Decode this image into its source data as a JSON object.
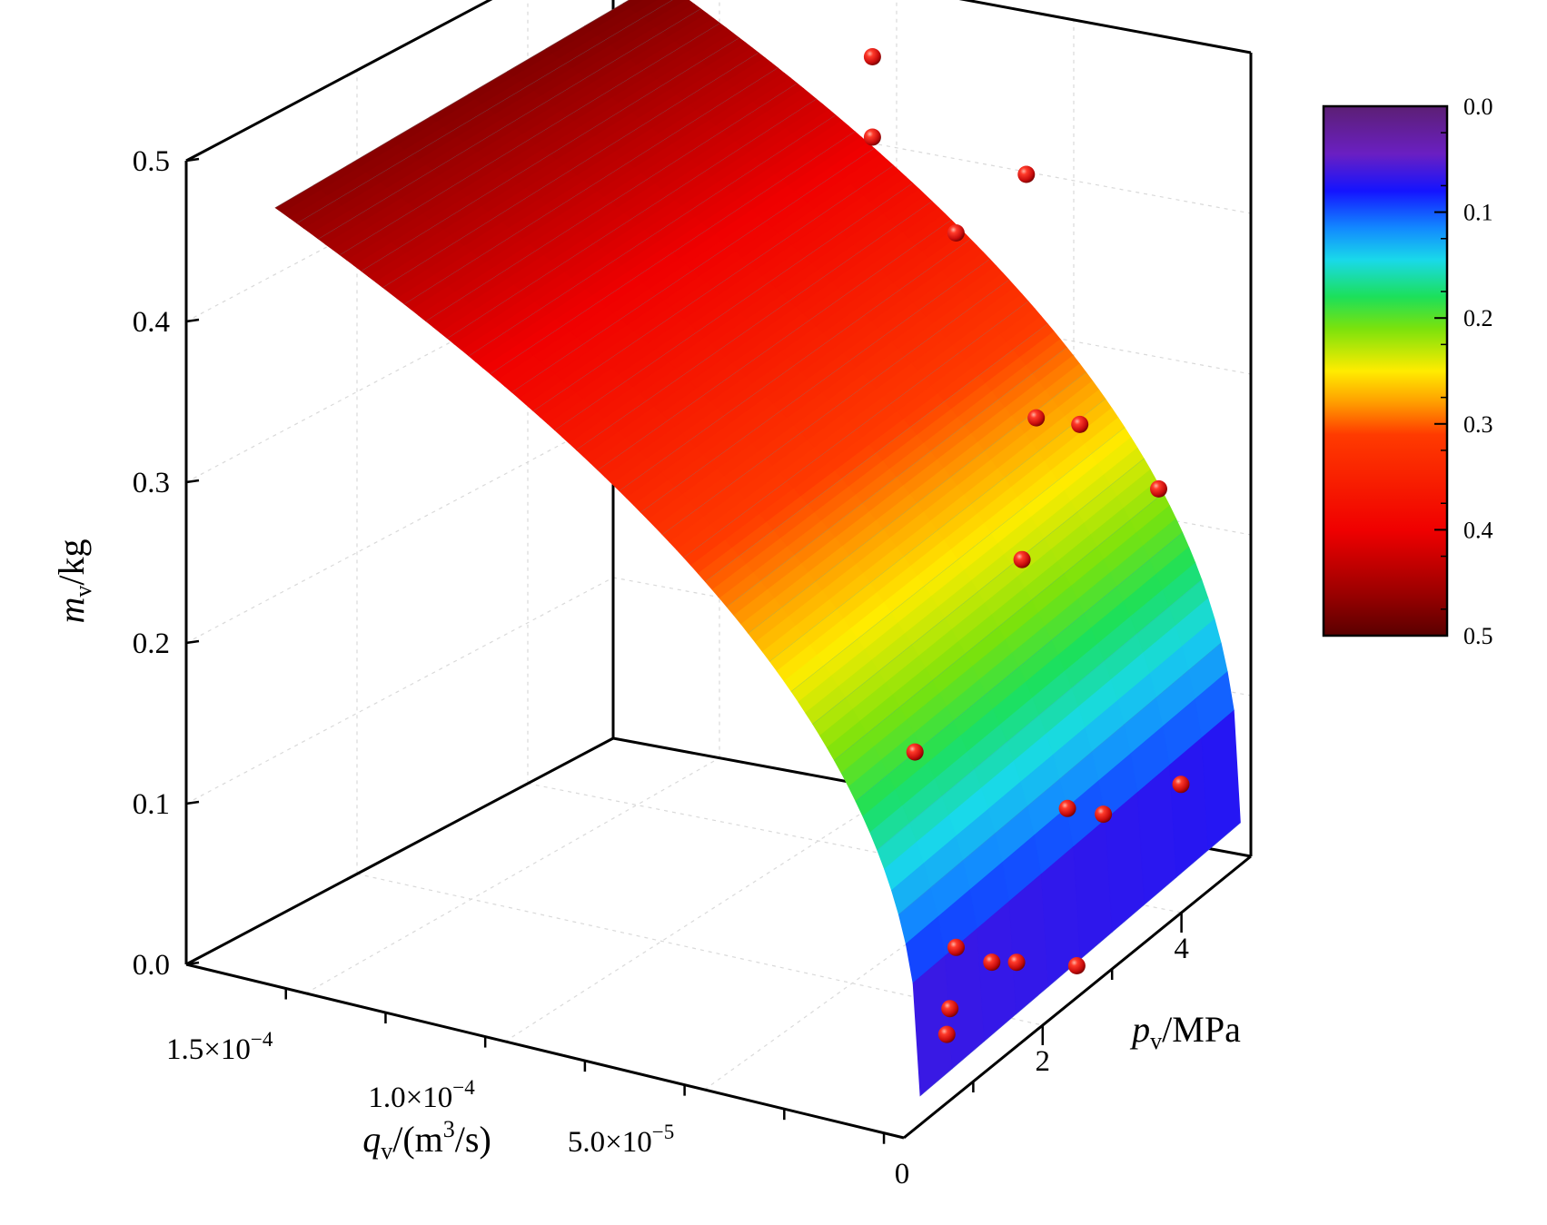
{
  "chart_data": {
    "type": "surface3d",
    "axes": {
      "x": {
        "label_var": "q",
        "label_sub": "v",
        "label_unit": "/(m",
        "label_sup": "3",
        "label_tail": "/s)",
        "ticks": [
          {
            "value": 0.00015,
            "mantissa": "1.5×10",
            "exp": "−4"
          },
          {
            "value": 0.0001,
            "mantissa": "1.0×10",
            "exp": "−4"
          },
          {
            "value": 5e-05,
            "mantissa": "5.0×10",
            "exp": "−5"
          }
        ],
        "range": [
          0.00018,
          0
        ]
      },
      "y": {
        "label_var": "p",
        "label_sub": "v",
        "label_unit": "/MPa",
        "ticks": [
          {
            "value": 0,
            "label": "0"
          },
          {
            "value": 2,
            "label": "2"
          },
          {
            "value": 4,
            "label": "4"
          }
        ],
        "range": [
          0,
          5
        ]
      },
      "z": {
        "label_var": "m",
        "label_sub": "v",
        "label_unit": "/kg",
        "ticks": [
          {
            "value": 0.0,
            "label": "0.0"
          },
          {
            "value": 0.1,
            "label": "0.1"
          },
          {
            "value": 0.2,
            "label": "0.2"
          },
          {
            "value": 0.3,
            "label": "0.3"
          },
          {
            "value": 0.4,
            "label": "0.4"
          },
          {
            "value": 0.5,
            "label": "0.5"
          }
        ],
        "range": [
          0,
          0.5
        ]
      }
    },
    "colorbar": {
      "range": [
        0.0,
        0.5
      ],
      "ticks": [
        "0.0",
        "0.1",
        "0.2",
        "0.3",
        "0.4",
        "0.5"
      ],
      "colormap": "rainbow",
      "placement": "right"
    },
    "surface_color": "rainbow colormap by m_v (dark red high, blue low)",
    "points_color": "#dd1b1b",
    "points": [
      {
        "q": 9.8e-05,
        "p": 4.6,
        "m": 0.47
      },
      {
        "q": 9.8e-05,
        "p": 4.6,
        "m": 0.42
      },
      {
        "q": 8e-05,
        "p": 4.85,
        "m": 0.36
      },
      {
        "q": 5.5e-05,
        "p": 4.6,
        "m": 0.415
      },
      {
        "q": 4e-05,
        "p": 4.0,
        "m": 0.29
      },
      {
        "q": 3.8e-05,
        "p": 4.5,
        "m": 0.27
      },
      {
        "q": 3e-05,
        "p": 3.3,
        "m": 0.23
      },
      {
        "q": 1.8e-05,
        "p": 4.6,
        "m": 0.235
      },
      {
        "q": 2.6e-05,
        "p": 1.6,
        "m": 0.17
      },
      {
        "q": 1.2e-05,
        "p": 3.0,
        "m": 0.094
      },
      {
        "q": 8e-06,
        "p": 3.3,
        "m": 0.082
      },
      {
        "q": 8e-06,
        "p": 1.2,
        "m": 0.072
      },
      {
        "q": 4e-06,
        "p": 4.2,
        "m": 0.071
      },
      {
        "q": 6e-06,
        "p": 1.6,
        "m": 0.05
      },
      {
        "q": 6e-06,
        "p": 1.0,
        "m": 0.042
      },
      {
        "q": 5e-06,
        "p": 1.9,
        "m": 0.04
      },
      {
        "q": 5e-06,
        "p": 0.9,
        "m": 0.03
      },
      {
        "q": 2e-06,
        "p": 2.6,
        "m": 0.015
      }
    ]
  }
}
